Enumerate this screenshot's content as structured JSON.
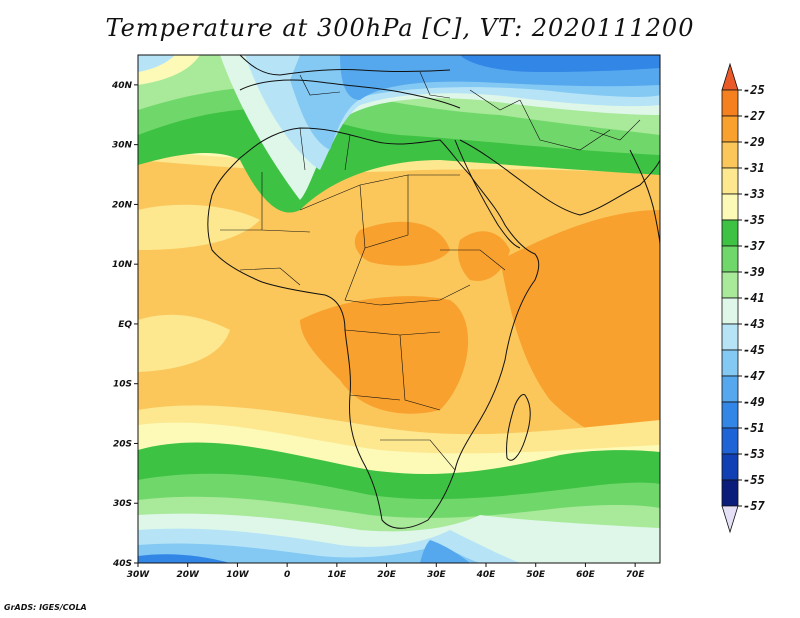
{
  "title": "Temperature at 300hPa [C], VT: 2020111200",
  "credit": "GrADS: IGES/COLA",
  "map": {
    "lon_range": [
      -30,
      75
    ],
    "lat_range": [
      -40,
      45
    ],
    "lon_ticks": [
      "30W",
      "20W",
      "10W",
      "0",
      "10E",
      "20E",
      "30E",
      "40E",
      "50E",
      "60E",
      "70E"
    ],
    "lat_ticks": [
      "40N",
      "30N",
      "20N",
      "10N",
      "EQ",
      "10S",
      "20S",
      "30S",
      "40S"
    ]
  },
  "colorbar": {
    "labels": [
      "-25",
      "-27",
      "-29",
      "-31",
      "-33",
      "-35",
      "-37",
      "-39",
      "-41",
      "-43",
      "-45",
      "-47",
      "-49",
      "-51",
      "-53",
      "-55",
      "-57"
    ],
    "colors": [
      "#ea5a28",
      "#f5801f",
      "#f8a12e",
      "#fbc75b",
      "#fde890",
      "#fdfab8",
      "#3ec244",
      "#70d86a",
      "#a8e99a",
      "#def7e8",
      "#b6e4f6",
      "#83c9f3",
      "#55a8ee",
      "#3286e6",
      "#1f64d6",
      "#1040b4",
      "#0a1d7a",
      "#e6e0f7"
    ]
  }
}
